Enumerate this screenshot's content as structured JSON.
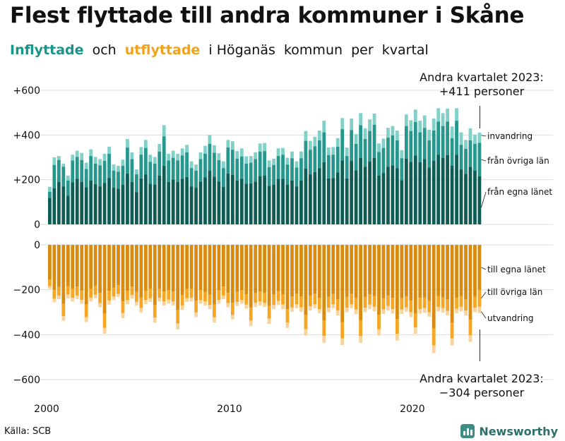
{
  "title": "Flest flyttade till andra kommuner i Skåne",
  "subtitle": {
    "in_label": "Inflyttade",
    "and": "och",
    "out_label": "utflyttade",
    "rest": "i Höganäs  kommun  per  kvartal"
  },
  "source": "Källa: SCB",
  "brand": "Newsworthy",
  "colors": {
    "in_own_county": "#0f5c55",
    "in_other_counties": "#26978c",
    "in_immigration": "#82d1c9",
    "out_own_county": "#d98a10",
    "out_other_counties": "#f6a623",
    "out_emigration": "#f8d39d",
    "grid": "#dddddd"
  },
  "chart_data": {
    "type": "bar",
    "stacked": true,
    "diverging": true,
    "x_start": "2000 Q1",
    "x_end": "2023 Q2",
    "frequency": "quarterly",
    "xticks": [
      "2000",
      "2010",
      "2020"
    ],
    "yticks_top": [
      "+600",
      "+400",
      "+200",
      "0"
    ],
    "yticks_bottom": [
      "0",
      "−200",
      "−400",
      "−600"
    ],
    "ylim_top": [
      0,
      600
    ],
    "ylim_bottom": [
      -600,
      0
    ],
    "grid": true,
    "series_in": [
      {
        "name": "invandring",
        "key": "in_imm"
      },
      {
        "name": "från övriga län",
        "key": "in_other"
      },
      {
        "name": "från egna länet",
        "key": "in_own"
      }
    ],
    "series_out": [
      {
        "name": "till egna länet",
        "key": "out_own"
      },
      {
        "name": "till övriga län",
        "key": "out_other"
      },
      {
        "name": "utvandring",
        "key": "out_emig"
      }
    ],
    "latest": {
      "period": "Andra kvartalet 2023",
      "in_total_text": "+411 personer",
      "out_total_text": "−304 personer",
      "in_total": 411,
      "out_total": -304,
      "in_own": 215,
      "in_other": 150,
      "in_imm": 46,
      "out_own": -200,
      "out_other": -75,
      "out_emig": -29
    },
    "in_total": [
      168,
      300,
      306,
      272,
      218,
      312,
      330,
      320,
      276,
      336,
      302,
      292,
      316,
      348,
      268,
      262,
      290,
      382,
      322,
      246,
      346,
      378,
      312,
      302,
      360,
      444,
      316,
      330,
      316,
      340,
      356,
      282,
      268,
      322,
      352,
      400,
      354,
      318,
      282,
      378,
      372,
      328,
      340,
      304,
      306,
      322,
      362,
      364,
      286,
      294,
      340,
      342,
      298,
      326,
      282,
      326,
      418,
      374,
      392,
      420,
      464,
      344,
      346,
      386,
      476,
      344,
      474,
      404,
      498,
      430,
      470,
      496,
      362,
      384,
      432,
      440,
      420,
      332,
      492,
      466,
      514,
      464,
      488,
      424,
      474,
      520,
      498,
      518,
      438,
      520,
      412,
      378,
      430,
      402,
      411
    ],
    "in_own": [
      118,
      162,
      190,
      170,
      128,
      188,
      204,
      190,
      166,
      196,
      180,
      170,
      186,
      208,
      164,
      160,
      178,
      228,
      190,
      144,
      206,
      224,
      182,
      178,
      218,
      262,
      190,
      200,
      190,
      204,
      212,
      170,
      164,
      192,
      210,
      240,
      214,
      192,
      168,
      228,
      222,
      196,
      204,
      182,
      184,
      192,
      216,
      218,
      172,
      178,
      204,
      204,
      178,
      196,
      170,
      196,
      250,
      224,
      234,
      252,
      278,
      206,
      208,
      232,
      286,
      206,
      284,
      242,
      298,
      258,
      282,
      298,
      218,
      230,
      258,
      264,
      252,
      198,
      294,
      280,
      308,
      278,
      292,
      254,
      284,
      312,
      298,
      310,
      262,
      312,
      246,
      226,
      258,
      240,
      215
    ],
    "in_other": [
      28,
      104,
      98,
      88,
      68,
      98,
      98,
      98,
      82,
      110,
      92,
      94,
      98,
      108,
      76,
      76,
      84,
      116,
      102,
      80,
      106,
      118,
      98,
      94,
      108,
      132,
      96,
      98,
      96,
      104,
      110,
      82,
      76,
      100,
      106,
      120,
      106,
      96,
      84,
      116,
      112,
      98,
      100,
      90,
      92,
      100,
      110,
      110,
      84,
      88,
      102,
      108,
      90,
      100,
      84,
      100,
      124,
      110,
      116,
      124,
      134,
      104,
      104,
      116,
      140,
      100,
      138,
      118,
      146,
      124,
      136,
      148,
      106,
      112,
      130,
      134,
      124,
      98,
      146,
      138,
      150,
      134,
      140,
      122,
      136,
      148,
      142,
      150,
      124,
      152,
      110,
      112,
      118,
      120,
      150
    ],
    "out_total": [
      -196,
      -256,
      -242,
      -338,
      -238,
      -252,
      -242,
      -262,
      -344,
      -252,
      -238,
      -278,
      -396,
      -266,
      -246,
      -232,
      -326,
      -264,
      -240,
      -270,
      -302,
      -264,
      -254,
      -346,
      -252,
      -270,
      -262,
      -270,
      -376,
      -290,
      -254,
      -252,
      -322,
      -262,
      -270,
      -286,
      -346,
      -262,
      -242,
      -278,
      -332,
      -272,
      -262,
      -284,
      -362,
      -276,
      -270,
      -276,
      -352,
      -286,
      -268,
      -286,
      -370,
      -298,
      -282,
      -298,
      -404,
      -292,
      -282,
      -304,
      -436,
      -300,
      -282,
      -314,
      -446,
      -300,
      -282,
      -308,
      -436,
      -300,
      -286,
      -296,
      -404,
      -308,
      -292,
      -306,
      -426,
      -308,
      -298,
      -322,
      -396,
      -306,
      -302,
      -320,
      -482,
      -296,
      -302,
      -314,
      -448,
      -304,
      -296,
      -314,
      -432,
      -300,
      -304
    ],
    "out_own": [
      -156,
      -200,
      -188,
      -262,
      -184,
      -196,
      -186,
      -204,
      -266,
      -196,
      -182,
      -214,
      -306,
      -204,
      -190,
      -180,
      -252,
      -204,
      -186,
      -210,
      -234,
      -204,
      -196,
      -268,
      -196,
      -208,
      -202,
      -208,
      -290,
      -224,
      -196,
      -196,
      -248,
      -202,
      -210,
      -222,
      -266,
      -202,
      -186,
      -214,
      -258,
      -210,
      -202,
      -220,
      -280,
      -214,
      -208,
      -214,
      -272,
      -222,
      -206,
      -220,
      -286,
      -230,
      -218,
      -230,
      -312,
      -226,
      -218,
      -236,
      -336,
      -232,
      -218,
      -242,
      -344,
      -232,
      -218,
      -238,
      -336,
      -232,
      -220,
      -228,
      -312,
      -238,
      -226,
      -236,
      -330,
      -238,
      -230,
      -248,
      -306,
      -236,
      -234,
      -248,
      -372,
      -228,
      -234,
      -242,
      -346,
      -236,
      -228,
      -242,
      -334,
      -232,
      -200
    ],
    "out_other": [
      -28,
      -40,
      -38,
      -56,
      -36,
      -40,
      -40,
      -42,
      -56,
      -40,
      -40,
      -46,
      -64,
      -44,
      -40,
      -38,
      -52,
      -42,
      -38,
      -44,
      -48,
      -42,
      -42,
      -56,
      -40,
      -44,
      -42,
      -44,
      -60,
      -46,
      -42,
      -40,
      -52,
      -44,
      -42,
      -46,
      -56,
      -44,
      -40,
      -46,
      -54,
      -44,
      -44,
      -46,
      -58,
      -44,
      -44,
      -44,
      -56,
      -46,
      -44,
      -46,
      -60,
      -48,
      -46,
      -48,
      -64,
      -48,
      -46,
      -50,
      -70,
      -48,
      -46,
      -50,
      -72,
      -48,
      -46,
      -50,
      -70,
      -48,
      -46,
      -48,
      -64,
      -50,
      -46,
      -50,
      -66,
      -50,
      -48,
      -52,
      -62,
      -50,
      -48,
      -52,
      -76,
      -48,
      -48,
      -52,
      -70,
      -48,
      -48,
      -50,
      -68,
      -48,
      -75
    ],
    "out_emig": [
      -12,
      -16,
      -16,
      -20,
      -18,
      -16,
      -16,
      -16,
      -22,
      -16,
      -16,
      -18,
      -26,
      -18,
      -16,
      -14,
      -22,
      -18,
      -16,
      -16,
      -20,
      -18,
      -16,
      -22,
      -16,
      -18,
      -18,
      -18,
      -26,
      -20,
      -16,
      -16,
      -22,
      -16,
      -18,
      -18,
      -24,
      -16,
      -16,
      -18,
      -20,
      -18,
      -16,
      -18,
      -24,
      -18,
      -18,
      -18,
      -24,
      -18,
      -18,
      -20,
      -24,
      -20,
      -18,
      -20,
      -28,
      -18,
      -18,
      -18,
      -30,
      -20,
      -18,
      -22,
      -30,
      -20,
      -18,
      -20,
      -30,
      -20,
      -20,
      -20,
      -28,
      -20,
      -20,
      -20,
      -30,
      -20,
      -20,
      -22,
      -28,
      -20,
      -20,
      -20,
      -34,
      -20,
      -20,
      -20,
      -32,
      -20,
      -20,
      -22,
      -30,
      -20,
      -29
    ]
  }
}
